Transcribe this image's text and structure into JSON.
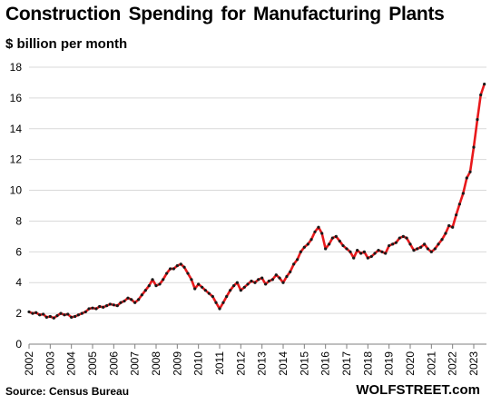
{
  "chart_data": {
    "type": "line",
    "title": "Construction  Spending  for Manufacturing  Plants",
    "subtitle": "$ billion per month",
    "source": "Source: Census Bureau",
    "brand": "WOLFSTREET.com",
    "xlabel": "",
    "ylabel": "",
    "ylim": [
      0,
      18
    ],
    "yticks": [
      0,
      2,
      4,
      6,
      8,
      10,
      12,
      14,
      16,
      18
    ],
    "xlim": [
      2002,
      2023.6
    ],
    "xticks": [
      "2002",
      "2003",
      "2004",
      "2005",
      "2006",
      "2007",
      "2008",
      "2009",
      "2010",
      "2011",
      "2012",
      "2013",
      "2014",
      "2015",
      "2016",
      "2017",
      "2018",
      "2019",
      "2020",
      "2021",
      "2022",
      "2023"
    ],
    "grid": "horizontal",
    "legend": "none",
    "line_color": "#e8191c",
    "marker_color": "#1a1a1a",
    "series": [
      {
        "x": [
          2002.0,
          2002.17,
          2002.33,
          2002.5,
          2002.67,
          2002.83,
          2003.0,
          2003.17,
          2003.33,
          2003.5,
          2003.67,
          2003.83,
          2004.0,
          2004.17,
          2004.33,
          2004.5,
          2004.67,
          2004.83,
          2005.0,
          2005.17,
          2005.33,
          2005.5,
          2005.67,
          2005.83,
          2006.0,
          2006.17,
          2006.33,
          2006.5,
          2006.67,
          2006.83,
          2007.0,
          2007.17,
          2007.33,
          2007.5,
          2007.67,
          2007.83,
          2008.0,
          2008.17,
          2008.33,
          2008.5,
          2008.67,
          2008.83,
          2009.0,
          2009.17,
          2009.33,
          2009.5,
          2009.67,
          2009.83,
          2010.0,
          2010.17,
          2010.33,
          2010.5,
          2010.67,
          2010.83,
          2011.0,
          2011.17,
          2011.33,
          2011.5,
          2011.67,
          2011.83,
          2012.0,
          2012.17,
          2012.33,
          2012.5,
          2012.67,
          2012.83,
          2013.0,
          2013.17,
          2013.33,
          2013.5,
          2013.67,
          2013.83,
          2014.0,
          2014.17,
          2014.33,
          2014.5,
          2014.67,
          2014.83,
          2015.0,
          2015.17,
          2015.33,
          2015.5,
          2015.67,
          2015.83,
          2016.0,
          2016.17,
          2016.33,
          2016.5,
          2016.67,
          2016.83,
          2017.0,
          2017.17,
          2017.33,
          2017.5,
          2017.67,
          2017.83,
          2018.0,
          2018.17,
          2018.33,
          2018.5,
          2018.67,
          2018.83,
          2019.0,
          2019.17,
          2019.33,
          2019.5,
          2019.67,
          2019.83,
          2020.0,
          2020.17,
          2020.33,
          2020.5,
          2020.67,
          2020.83,
          2021.0,
          2021.17,
          2021.33,
          2021.5,
          2021.67,
          2021.83,
          2022.0,
          2022.17,
          2022.33,
          2022.5,
          2022.67,
          2022.83,
          2023.0,
          2023.17,
          2023.33,
          2023.5
        ],
        "y": [
          2.1,
          2.0,
          2.05,
          1.9,
          1.95,
          1.75,
          1.8,
          1.7,
          1.85,
          2.0,
          1.9,
          1.95,
          1.75,
          1.8,
          1.9,
          2.0,
          2.1,
          2.3,
          2.35,
          2.3,
          2.45,
          2.4,
          2.5,
          2.6,
          2.55,
          2.5,
          2.7,
          2.8,
          3.0,
          2.9,
          2.7,
          2.9,
          3.2,
          3.5,
          3.8,
          4.2,
          3.8,
          3.9,
          4.2,
          4.6,
          4.9,
          4.9,
          5.1,
          5.2,
          5.0,
          4.6,
          4.2,
          3.6,
          3.9,
          3.7,
          3.5,
          3.3,
          3.1,
          2.7,
          2.3,
          2.7,
          3.1,
          3.5,
          3.8,
          4.0,
          3.5,
          3.7,
          3.9,
          4.1,
          4.0,
          4.2,
          4.3,
          3.9,
          4.1,
          4.2,
          4.5,
          4.3,
          4.0,
          4.4,
          4.7,
          5.2,
          5.5,
          6.0,
          6.3,
          6.5,
          6.8,
          7.3,
          7.6,
          7.2,
          6.2,
          6.5,
          6.9,
          7.0,
          6.7,
          6.4,
          6.2,
          6.0,
          5.6,
          6.1,
          5.9,
          6.0,
          5.6,
          5.7,
          5.9,
          6.1,
          6.0,
          5.9,
          6.4,
          6.5,
          6.6,
          6.9,
          7.0,
          6.9,
          6.5,
          6.1,
          6.2,
          6.3,
          6.5,
          6.2,
          6.0,
          6.2,
          6.5,
          6.8,
          7.2,
          7.7,
          7.6,
          8.4,
          9.1,
          9.8,
          10.8,
          11.2,
          12.8,
          14.6,
          16.2,
          16.9
        ]
      }
    ]
  }
}
